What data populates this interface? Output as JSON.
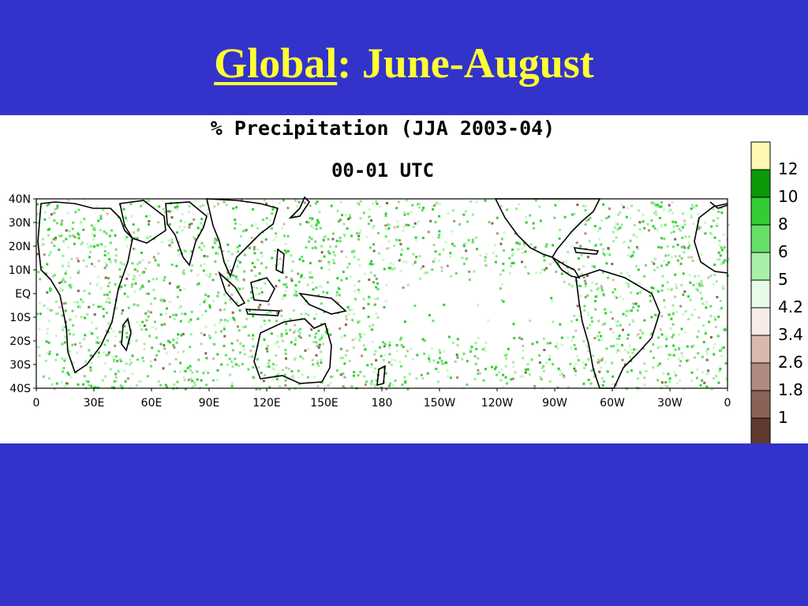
{
  "slide": {
    "title_main": "Global",
    "title_rest": ":  June-August",
    "colors": {
      "background": "#3333cc",
      "title": "#ffff33"
    }
  },
  "map": {
    "title": "% Precipitation (JJA 2003-04)",
    "subtitle": "00-01 UTC",
    "lat_labels": [
      "40N",
      "30N",
      "20N",
      "10N",
      "EQ",
      "10S",
      "20S",
      "30S",
      "40S"
    ],
    "lon_labels": [
      "0",
      "30E",
      "60E",
      "90E",
      "120E",
      "150E",
      "180",
      "150W",
      "120W",
      "90W",
      "60W",
      "30W",
      "0"
    ]
  },
  "legend": {
    "labels": [
      "12",
      "10",
      "8",
      "6",
      "5",
      "4.2",
      "3.4",
      "2.6",
      "1.8",
      "1"
    ],
    "colors": [
      "#fff8b0",
      "#0a9a0a",
      "#33cc33",
      "#66e066",
      "#a8f0a8",
      "#e8fbe8",
      "#f7ece6",
      "#d9b8ad",
      "#b08a80",
      "#8a6256",
      "#5e3a30"
    ]
  }
}
